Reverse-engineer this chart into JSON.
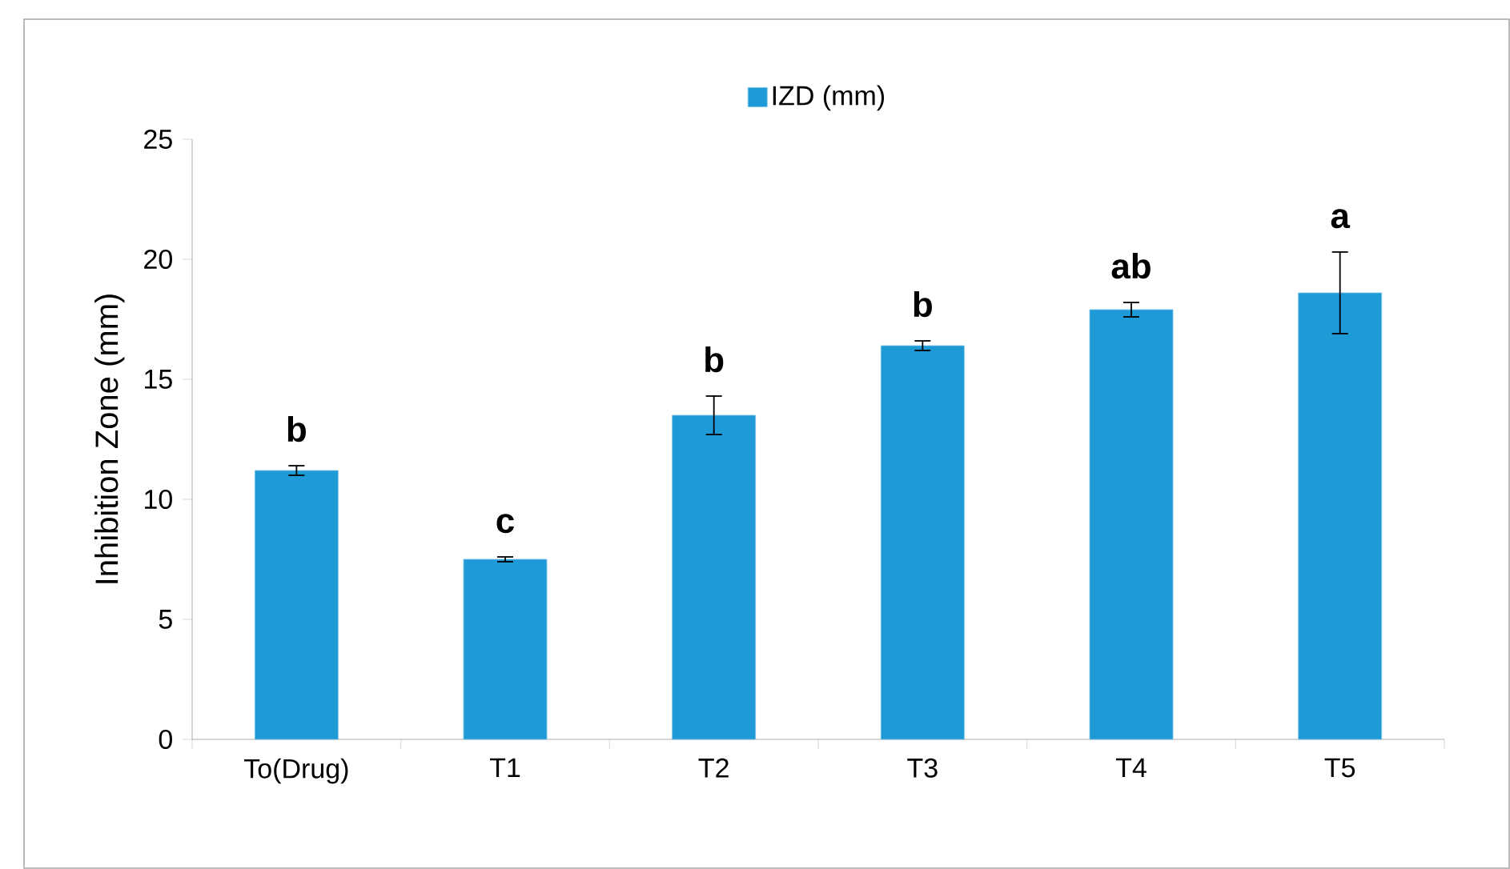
{
  "chart_data": {
    "type": "bar",
    "ylabel": "Inhibition Zone (mm)",
    "categories": [
      "To(Drug)",
      "T1",
      "T2",
      "T3",
      "T4",
      "T5"
    ],
    "series": [
      {
        "name": "IZD (mm)",
        "color": "#1e9ad6",
        "values": [
          11.2,
          7.5,
          13.5,
          16.4,
          17.9,
          18.6
        ],
        "errors": [
          0.2,
          0.1,
          0.8,
          0.2,
          0.3,
          1.7
        ]
      }
    ],
    "ylim": [
      0,
      25
    ],
    "yticks": [
      0,
      5,
      10,
      15,
      20,
      25
    ],
    "grid": false,
    "legend": "top",
    "annotations": [
      "b",
      "c",
      "b",
      "b",
      "ab",
      "a"
    ]
  }
}
